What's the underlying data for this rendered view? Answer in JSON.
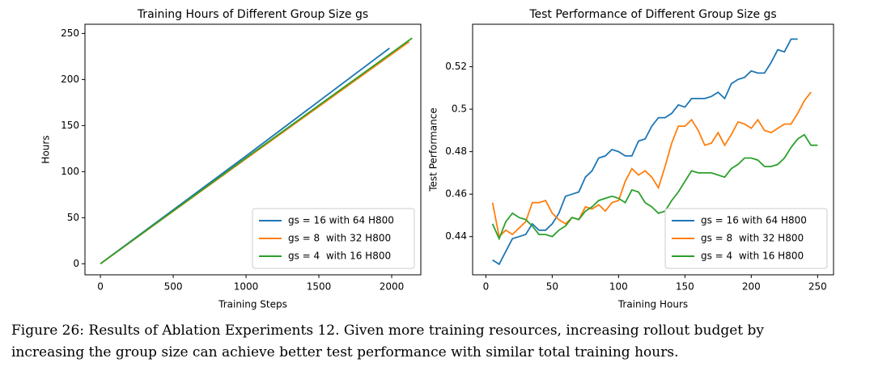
{
  "chart_data": [
    {
      "type": "line",
      "title": "Training Hours of Different Group Size gs",
      "xlabel": "Training Steps",
      "ylabel": "Hours",
      "xlim": [
        -106,
        2200
      ],
      "xticks": [
        0,
        500,
        1000,
        1500,
        2000
      ],
      "ylim": [
        -12,
        260
      ],
      "yticks": [
        0,
        50,
        100,
        150,
        200,
        250
      ],
      "legend": "lower right",
      "series": [
        {
          "name": "gs = 16 with 64 H800",
          "color": "#1f77b4",
          "x": [
            0,
            1000,
            1985
          ],
          "values": [
            0,
            117,
            234
          ]
        },
        {
          "name": "gs = 8  with 32 H800",
          "color": "#ff7f0e",
          "x": [
            0,
            1000,
            2120
          ],
          "values": [
            0,
            114,
            241
          ]
        },
        {
          "name": "gs = 4  with 16 H800",
          "color": "#2ca02c",
          "x": [
            0,
            1000,
            2140
          ],
          "values": [
            0,
            115,
            245
          ]
        }
      ]
    },
    {
      "type": "line",
      "title": "Test Performance of Different Group Size gs",
      "xlabel": "Training Hours",
      "ylabel": "Test Performance",
      "xlim": [
        -10,
        262
      ],
      "xticks": [
        0,
        50,
        100,
        150,
        200,
        250
      ],
      "ylim": [
        0.422,
        0.54
      ],
      "yticks": [
        0.44,
        0.46,
        0.48,
        0.5,
        0.52
      ],
      "legend": "lower right",
      "series": [
        {
          "name": "gs = 16 with 64 H800",
          "color": "#1f77b4",
          "x": [
            5,
            10,
            15,
            20,
            25,
            30,
            35,
            40,
            45,
            50,
            55,
            60,
            65,
            70,
            75,
            80,
            85,
            90,
            95,
            100,
            105,
            110,
            115,
            120,
            125,
            130,
            135,
            140,
            145,
            150,
            155,
            160,
            165,
            170,
            175,
            180,
            185,
            190,
            195,
            200,
            205,
            210,
            215,
            220,
            225,
            230,
            235
          ],
          "values": [
            0.429,
            0.427,
            0.433,
            0.439,
            0.44,
            0.441,
            0.446,
            0.443,
            0.443,
            0.446,
            0.451,
            0.459,
            0.46,
            0.461,
            0.468,
            0.471,
            0.477,
            0.478,
            0.481,
            0.48,
            0.478,
            0.478,
            0.485,
            0.486,
            0.492,
            0.496,
            0.496,
            0.498,
            0.502,
            0.501,
            0.505,
            0.505,
            0.505,
            0.506,
            0.508,
            0.505,
            0.512,
            0.514,
            0.515,
            0.518,
            0.517,
            0.517,
            0.522,
            0.528,
            0.527,
            0.533,
            0.533
          ]
        },
        {
          "name": "gs = 8  with 32 H800",
          "color": "#ff7f0e",
          "x": [
            5,
            10,
            15,
            20,
            25,
            30,
            35,
            40,
            45,
            50,
            55,
            60,
            65,
            70,
            75,
            80,
            85,
            90,
            95,
            100,
            105,
            110,
            115,
            120,
            125,
            130,
            135,
            140,
            145,
            150,
            155,
            160,
            165,
            170,
            175,
            180,
            185,
            190,
            195,
            200,
            205,
            210,
            215,
            220,
            225,
            230,
            235,
            240,
            245
          ],
          "values": [
            0.456,
            0.44,
            0.443,
            0.441,
            0.444,
            0.447,
            0.456,
            0.456,
            0.457,
            0.451,
            0.448,
            0.446,
            0.449,
            0.448,
            0.454,
            0.453,
            0.455,
            0.452,
            0.456,
            0.457,
            0.466,
            0.472,
            0.469,
            0.471,
            0.468,
            0.463,
            0.473,
            0.484,
            0.492,
            0.492,
            0.495,
            0.49,
            0.483,
            0.484,
            0.489,
            0.483,
            0.488,
            0.494,
            0.493,
            0.491,
            0.495,
            0.49,
            0.489,
            0.491,
            0.493,
            0.493,
            0.498,
            0.504,
            0.508
          ]
        },
        {
          "name": "gs = 4  with 16 H800",
          "color": "#2ca02c",
          "x": [
            5,
            10,
            15,
            20,
            25,
            30,
            35,
            40,
            45,
            50,
            55,
            60,
            65,
            70,
            75,
            80,
            85,
            90,
            95,
            100,
            105,
            110,
            115,
            120,
            125,
            130,
            135,
            140,
            145,
            150,
            155,
            160,
            165,
            170,
            175,
            180,
            185,
            190,
            195,
            200,
            205,
            210,
            215,
            220,
            225,
            230,
            235,
            240,
            245,
            250
          ],
          "values": [
            0.446,
            0.439,
            0.447,
            0.451,
            0.449,
            0.448,
            0.445,
            0.441,
            0.441,
            0.44,
            0.443,
            0.445,
            0.449,
            0.448,
            0.452,
            0.454,
            0.457,
            0.458,
            0.459,
            0.458,
            0.456,
            0.462,
            0.461,
            0.456,
            0.454,
            0.451,
            0.452,
            0.457,
            0.461,
            0.466,
            0.471,
            0.47,
            0.47,
            0.47,
            0.469,
            0.468,
            0.472,
            0.474,
            0.477,
            0.477,
            0.476,
            0.473,
            0.473,
            0.474,
            0.477,
            0.482,
            0.486,
            0.488,
            0.483,
            0.483
          ]
        }
      ]
    }
  ],
  "caption": [
    "Figure 26: Results of Ablation Experiments 12. Given more training resources, increasing rollout budget by",
    "increasing the group size can achieve better test performance with similar total training hours."
  ]
}
